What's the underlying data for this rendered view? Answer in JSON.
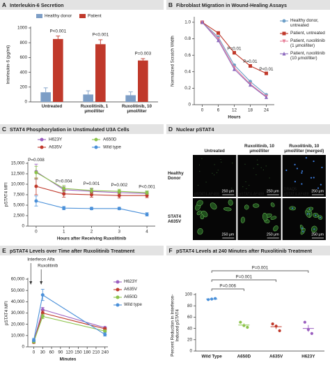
{
  "chart_data": [
    {
      "panel": "A",
      "type": "bar",
      "title": "Interleukin-6 Secretion",
      "y_label": "Interleukin-6 (pg/ml)",
      "categories": [
        "Untreated",
        "Ruxolitinib, 1 μmol/liter",
        "Ruxolitinib, 10 μmol/liter"
      ],
      "series": [
        {
          "name": "Healthy donor",
          "color": "#7d9ec6",
          "values": [
            130,
            100,
            90
          ],
          "errors": [
            60,
            50,
            45
          ]
        },
        {
          "name": "Patient",
          "color": "#c0392b",
          "values": [
            850,
            780,
            560
          ],
          "errors": [
            40,
            60,
            25
          ]
        }
      ],
      "p_values": [
        "P<0.001",
        "P<0.001",
        "P=0.003"
      ],
      "ylim": [
        0,
        1000
      ],
      "yticks": [
        0,
        200,
        400,
        600,
        800,
        1000
      ],
      "legend": "top"
    },
    {
      "panel": "B",
      "type": "line",
      "title": "Fibroblast Migration in Wound-Healing Assays",
      "x_label": "Hours",
      "y_label": "Normalized Scratch Width",
      "x": [
        0,
        6,
        12,
        18,
        24
      ],
      "xlim": [
        -3,
        27
      ],
      "xticks": [
        0,
        6,
        12,
        18,
        24
      ],
      "ylim": [
        0,
        1.05
      ],
      "yticks": [
        0,
        0.2,
        0.4,
        0.6,
        0.8,
        {
          "value": 1,
          "label": "1.0"
        }
      ],
      "legend": "right",
      "series": [
        {
          "name": "Healthy donor, untreated",
          "color": "#6fa0c8",
          "marker": "circle",
          "values": [
            1.0,
            0.82,
            0.48,
            0.28,
            0.12
          ]
        },
        {
          "name": "Patient, untreated",
          "color": "#c0392b",
          "marker": "square",
          "values": [
            1.0,
            0.87,
            0.63,
            0.47,
            0.38
          ]
        },
        {
          "name": "Patient, ruxolitinib (1 μmol/liter)",
          "color": "#e8829a",
          "marker": "triangle-down",
          "values": [
            1.0,
            0.8,
            0.45,
            0.25,
            0.1
          ]
        },
        {
          "name": "Patient, ruxolitinib (10 μmol/liter)",
          "color": "#8e6bbf",
          "marker": "triangle-up",
          "values": [
            1.0,
            0.78,
            0.43,
            0.24,
            0.09
          ]
        }
      ],
      "p_values": [
        {
          "x": 12,
          "label": "P=0.01"
        },
        {
          "x": 18,
          "label": "P=0.01"
        },
        {
          "x": 24,
          "label": "P<0.01"
        }
      ]
    },
    {
      "panel": "C",
      "type": "line",
      "title": "STAT4 Phosphorylation in Unstimulated U3A Cells",
      "x_label": "Hours after Receiving Ruxolitinib",
      "y_label": "pSTAT4 MFI",
      "x": [
        0,
        1,
        2,
        3,
        4
      ],
      "xlim": [
        -0.3,
        4.3
      ],
      "xticks": [
        0,
        1,
        2,
        3,
        4
      ],
      "ylim": [
        0,
        15000
      ],
      "yticks": [
        0,
        {
          "value": 2500,
          "label": "2,500"
        },
        {
          "value": 5000,
          "label": "5,000"
        },
        {
          "value": 7500,
          "label": "7,500"
        },
        {
          "value": 10000,
          "label": "10,000"
        },
        {
          "value": 12500,
          "label": "12,500"
        },
        {
          "value": 15000,
          "label": "15,000"
        }
      ],
      "legend": "top",
      "series": [
        {
          "name": "H623Y",
          "color": "#9b5fc0",
          "marker": "circle",
          "values": [
            13000,
            8700,
            8300,
            8000,
            7800
          ],
          "errors": [
            1800,
            700,
            600,
            500,
            500
          ]
        },
        {
          "name": "A635V",
          "color": "#c0392b",
          "marker": "circle",
          "values": [
            9500,
            7700,
            7500,
            7300,
            7300
          ],
          "errors": [
            2000,
            800,
            600,
            600,
            500
          ]
        },
        {
          "name": "A650D",
          "color": "#8bc34a",
          "marker": "circle",
          "values": [
            12800,
            9000,
            8500,
            8300,
            8000
          ],
          "errors": [
            1500,
            700,
            600,
            500,
            400
          ]
        },
        {
          "name": "Wild type",
          "color": "#4a90d9",
          "marker": "circle",
          "values": [
            6000,
            4300,
            4200,
            4200,
            2800
          ],
          "errors": [
            1200,
            400,
            300,
            300,
            400
          ]
        }
      ],
      "p_values": [
        {
          "x": 0,
          "label": "P=0.008"
        },
        {
          "x": 1,
          "label": "P=0.004"
        },
        {
          "x": 2,
          "label": "P=0.001"
        },
        {
          "x": 3,
          "label": "P=0.002"
        },
        {
          "x": 4,
          "label": "P<0.001"
        }
      ]
    },
    {
      "panel": "D",
      "type": "image-grid",
      "title": "Nuclear pSTAT4",
      "columns": [
        "Untreated",
        "Ruxolitinib, 10 μmol/liter",
        "Ruxolitinib, 10 μmol/liter (merged)"
      ],
      "rows": [
        {
          "label": "Healthy Donor",
          "stains": [
            [
              "pSTAT4-AF488"
            ],
            [
              "pSTAT4-AF488"
            ],
            [
              "DRAQ5",
              "pSTAT4-AF488"
            ]
          ]
        },
        {
          "label": "STAT4 A635V",
          "stains": [
            [],
            [],
            []
          ]
        }
      ],
      "scale_bar": "250 μm"
    },
    {
      "panel": "E",
      "type": "line",
      "title": "pSTAT4 Levels over Time after Ruxolitinib Treatment",
      "x_label": "Minutes",
      "y_label": "pSTAT4 MFI",
      "x": [
        0,
        30,
        240
      ],
      "xlim": [
        -20,
        250
      ],
      "xticks": [
        0,
        30,
        60,
        90,
        120,
        150,
        180,
        210,
        240
      ],
      "ylim": [
        0,
        60000
      ],
      "yticks": [
        0,
        {
          "value": 10000,
          "label": "10,000"
        },
        {
          "value": 20000,
          "label": "20,000"
        },
        {
          "value": 30000,
          "label": "30,000"
        },
        {
          "value": 40000,
          "label": "40,000"
        },
        {
          "value": 50000,
          "label": "50,000"
        },
        {
          "value": 60000,
          "label": "60,000"
        }
      ],
      "legend": "right",
      "annotations": [
        {
          "label": "Interferon Alfa",
          "x": -10
        },
        {
          "label": "Ruxolitinib",
          "x": 25
        }
      ],
      "series": [
        {
          "name": "H623Y",
          "color": "#9b5fc0",
          "marker": "circle",
          "values": [
            5000,
            33000,
            17000
          ],
          "errors": [
            800,
            2000,
            800
          ]
        },
        {
          "name": "A635V",
          "color": "#c0392b",
          "marker": "circle",
          "values": [
            4000,
            30000,
            16000
          ],
          "errors": [
            800,
            2000,
            800
          ]
        },
        {
          "name": "A650D",
          "color": "#8bc34a",
          "marker": "circle",
          "values": [
            4500,
            27000,
            14000
          ],
          "errors": [
            800,
            2000,
            800
          ]
        },
        {
          "name": "Wild type",
          "color": "#4a90d9",
          "marker": "circle",
          "values": [
            6000,
            46000,
            11000
          ],
          "errors": [
            1500,
            5000,
            1500
          ]
        }
      ]
    },
    {
      "panel": "F",
      "type": "dot",
      "title": "pSTAT4 Levels at 240 Minutes after Ruxolitinib Treatment",
      "y_label": "Percent Reduction in Interferon-Induced pSTAT4",
      "categories": [
        "Wild Type",
        "A650D",
        "A635V",
        "H623Y"
      ],
      "colors": [
        "#4a90d9",
        "#8bc34a",
        "#c0392b",
        "#9b5fc0"
      ],
      "points": [
        [
          91,
          92,
          93
        ],
        [
          51,
          45,
          42
        ],
        [
          48,
          44,
          36
        ],
        [
          51,
          38,
          31
        ]
      ],
      "means": [
        92,
        46,
        43,
        40
      ],
      "errors": [
        1,
        3,
        4,
        6
      ],
      "ylim": [
        0,
        100
      ],
      "yticks": [
        0,
        20,
        40,
        60,
        80,
        100
      ],
      "comparisons": [
        {
          "vs": "A650D",
          "label": "P=0.006"
        },
        {
          "vs": "A635V",
          "label": "P=0.001"
        },
        {
          "vs": "H623Y",
          "label": "P=0.001"
        }
      ]
    }
  ]
}
